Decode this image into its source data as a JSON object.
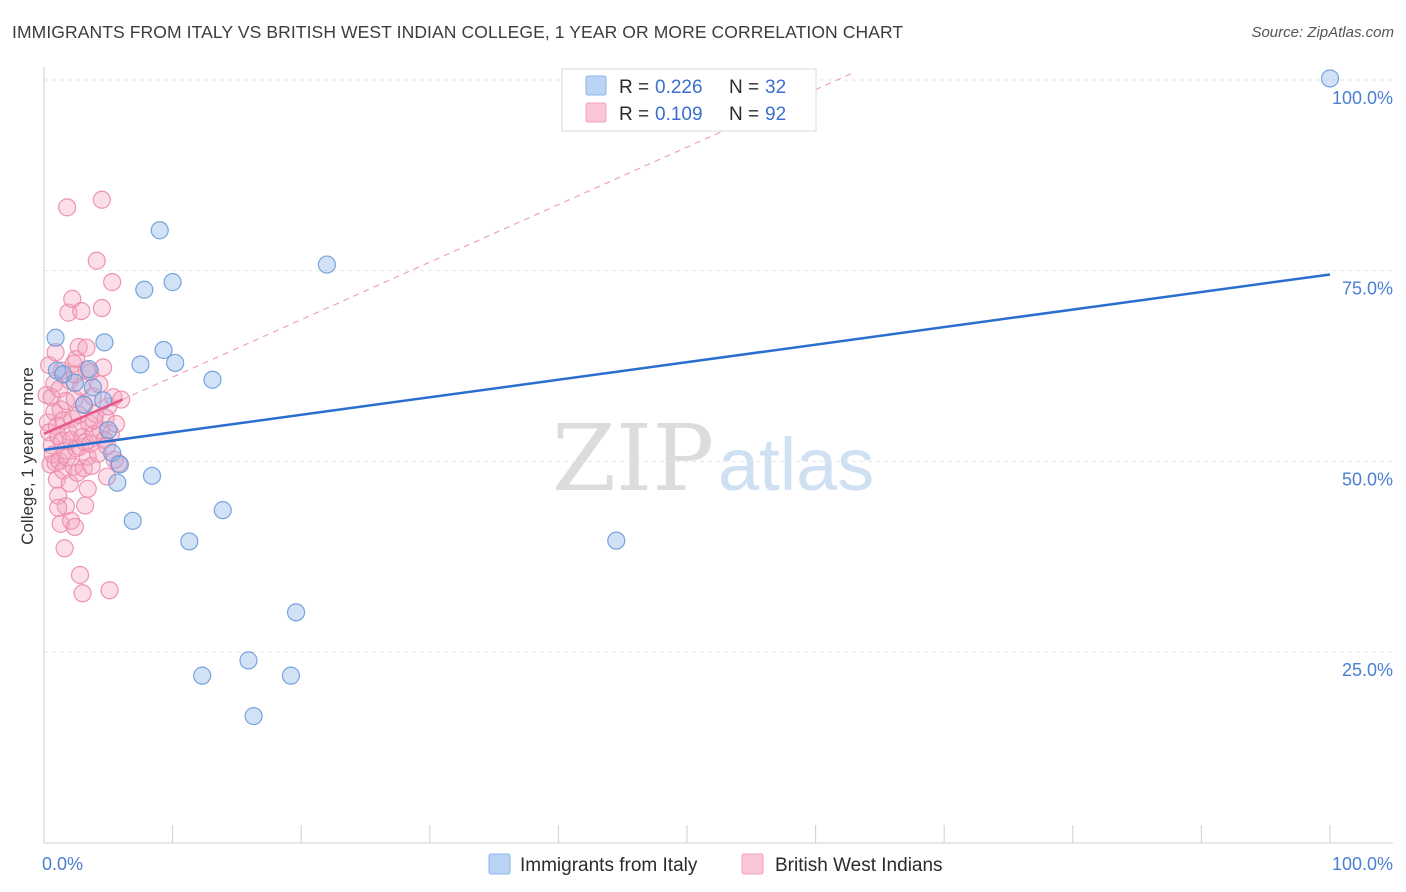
{
  "chart_data": {
    "type": "scatter",
    "title": "IMMIGRANTS FROM ITALY VS BRITISH WEST INDIAN COLLEGE, 1 YEAR OR MORE CORRELATION CHART",
    "source": "Source: ZipAtlas.com",
    "xlabel": "",
    "ylabel": "College, 1 year or more",
    "xlim": [
      0,
      100
    ],
    "ylim": [
      0,
      105
    ],
    "x_tick_labels": [
      "0.0%",
      "100.0%"
    ],
    "y_ticks": [
      25,
      50,
      75,
      100
    ],
    "y_tick_labels": [
      "25.0%",
      "50.0%",
      "75.0%",
      "100.0%"
    ],
    "watermark": {
      "zip": "ZIP",
      "atlas": "atlas"
    },
    "legend": [
      {
        "r_label": "R = ",
        "r_value": "0.226",
        "n_label": "N = ",
        "n_value": "32"
      },
      {
        "r_label": "R = ",
        "r_value": "0.109",
        "n_label": "N = ",
        "n_value": "92"
      }
    ],
    "series": [
      {
        "name": "Immigrants from Italy",
        "color": "#8ab4e8",
        "edge_color": "#6a9bd8",
        "trend_color": "#2a6fd0",
        "trend": {
          "x": [
            0,
            100
          ],
          "y": [
            51.5,
            74.5
          ]
        },
        "points": [
          [
            0.9,
            66.2
          ],
          [
            1.0,
            61.9
          ],
          [
            1.5,
            61.4
          ],
          [
            2.4,
            60.3
          ],
          [
            3.1,
            57.4
          ],
          [
            3.5,
            62.1
          ],
          [
            3.8,
            59.7
          ],
          [
            4.6,
            58.0
          ],
          [
            5.0,
            54.1
          ],
          [
            4.7,
            65.6
          ],
          [
            5.3,
            51.1
          ],
          [
            5.9,
            49.6
          ],
          [
            5.7,
            47.2
          ],
          [
            6.9,
            42.2
          ],
          [
            7.5,
            62.7
          ],
          [
            7.8,
            72.5
          ],
          [
            8.4,
            48.1
          ],
          [
            9.0,
            80.3
          ],
          [
            9.3,
            64.6
          ],
          [
            10.0,
            73.5
          ],
          [
            10.2,
            62.9
          ],
          [
            11.3,
            39.5
          ],
          [
            12.3,
            21.9
          ],
          [
            13.1,
            60.7
          ],
          [
            13.9,
            43.6
          ],
          [
            15.9,
            23.9
          ],
          [
            16.3,
            16.6
          ],
          [
            19.2,
            21.9
          ],
          [
            19.6,
            30.2
          ],
          [
            22.0,
            75.8
          ],
          [
            44.5,
            39.6
          ],
          [
            100.0,
            100.2
          ]
        ]
      },
      {
        "name": "British West Indians",
        "color": "#f4a8c2",
        "edge_color": "#ec8aab",
        "trend_color": "#e8578a",
        "trend": {
          "x": [
            0,
            6.1
          ],
          "y": [
            53.6,
            58.1
          ]
        },
        "extension": {
          "x": [
            6.1,
            63.0
          ],
          "y": [
            58.1,
            101.0
          ]
        },
        "points": [
          [
            0.2,
            58.7
          ],
          [
            0.3,
            55.1
          ],
          [
            0.4,
            53.8
          ],
          [
            0.5,
            49.6
          ],
          [
            0.6,
            52.1
          ],
          [
            0.6,
            58.4
          ],
          [
            0.7,
            50.9
          ],
          [
            0.8,
            56.5
          ],
          [
            0.8,
            60.2
          ],
          [
            0.9,
            49.8
          ],
          [
            1.0,
            47.6
          ],
          [
            1.0,
            54.6
          ],
          [
            1.1,
            45.5
          ],
          [
            1.1,
            53.3
          ],
          [
            1.2,
            50.0
          ],
          [
            1.2,
            59.5
          ],
          [
            1.3,
            41.8
          ],
          [
            1.3,
            56.8
          ],
          [
            1.4,
            52.7
          ],
          [
            1.4,
            61.9
          ],
          [
            1.5,
            48.8
          ],
          [
            1.5,
            55.4
          ],
          [
            1.6,
            38.6
          ],
          [
            1.6,
            51.4
          ],
          [
            1.7,
            57.9
          ],
          [
            1.7,
            44.1
          ],
          [
            1.8,
            83.3
          ],
          [
            1.8,
            50.5
          ],
          [
            1.9,
            53.9
          ],
          [
            1.9,
            69.5
          ],
          [
            2.0,
            47.1
          ],
          [
            2.0,
            60.6
          ],
          [
            2.1,
            52.8
          ],
          [
            2.1,
            42.2
          ],
          [
            2.2,
            71.3
          ],
          [
            2.2,
            55.6
          ],
          [
            2.3,
            49.3
          ],
          [
            2.3,
            62.8
          ],
          [
            2.4,
            58.2
          ],
          [
            2.4,
            41.4
          ],
          [
            2.5,
            51.7
          ],
          [
            2.5,
            63.4
          ],
          [
            2.6,
            54.4
          ],
          [
            2.6,
            48.5
          ],
          [
            2.7,
            65.0
          ],
          [
            2.7,
            56.1
          ],
          [
            2.8,
            35.1
          ],
          [
            2.8,
            51.9
          ],
          [
            2.9,
            69.7
          ],
          [
            2.9,
            59.8
          ],
          [
            3.0,
            32.7
          ],
          [
            3.0,
            53.2
          ],
          [
            3.1,
            49.1
          ],
          [
            3.1,
            57.5
          ],
          [
            3.2,
            44.2
          ],
          [
            3.2,
            52.5
          ],
          [
            3.3,
            62.0
          ],
          [
            3.3,
            64.9
          ],
          [
            3.4,
            46.4
          ],
          [
            3.4,
            50.6
          ],
          [
            3.5,
            55.0
          ],
          [
            3.6,
            61.7
          ],
          [
            3.6,
            52.3
          ],
          [
            3.7,
            49.4
          ],
          [
            3.8,
            58.5
          ],
          [
            3.9,
            53.6
          ],
          [
            4.0,
            56.2
          ],
          [
            4.1,
            76.3
          ],
          [
            4.2,
            51.0
          ],
          [
            4.3,
            60.1
          ],
          [
            4.4,
            54.1
          ],
          [
            4.5,
            84.3
          ],
          [
            4.5,
            70.1
          ],
          [
            4.6,
            62.3
          ],
          [
            4.7,
            52.8
          ],
          [
            4.8,
            55.7
          ],
          [
            4.9,
            48.0
          ],
          [
            5.0,
            57.2
          ],
          [
            5.1,
            33.1
          ],
          [
            5.2,
            53.6
          ],
          [
            5.3,
            73.5
          ],
          [
            5.4,
            58.4
          ],
          [
            5.5,
            50.2
          ],
          [
            5.6,
            54.9
          ],
          [
            5.8,
            49.7
          ],
          [
            6.0,
            58.1
          ],
          [
            0.4,
            62.6
          ],
          [
            0.9,
            64.3
          ],
          [
            1.1,
            43.9
          ],
          [
            2.4,
            61.4
          ],
          [
            3.9,
            55.4
          ],
          [
            4.9,
            52.0
          ]
        ]
      }
    ]
  }
}
